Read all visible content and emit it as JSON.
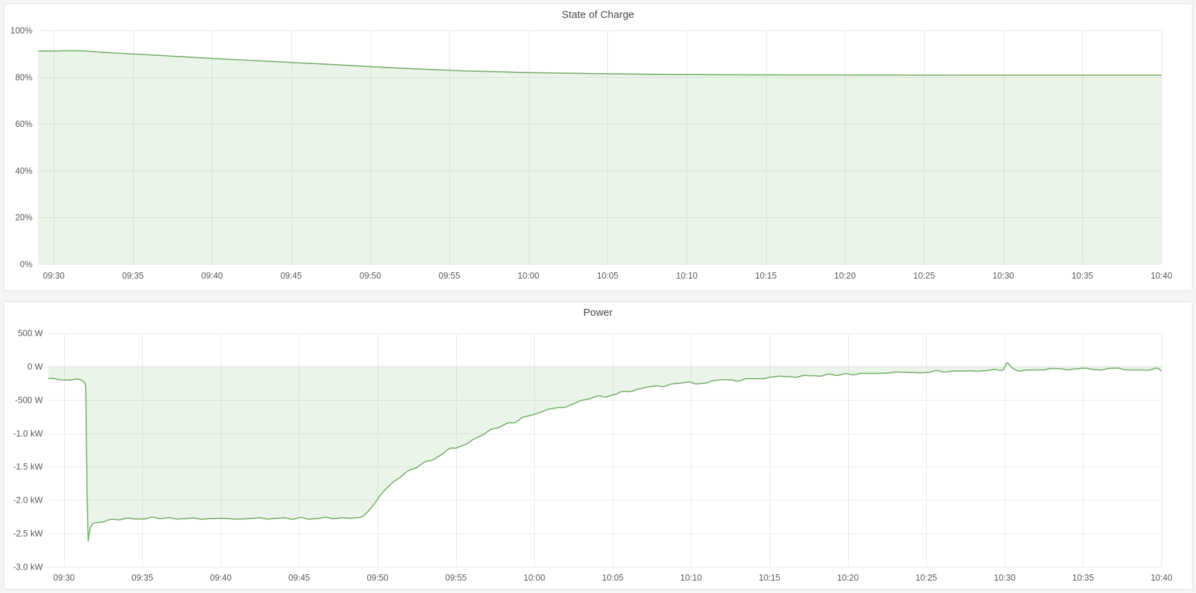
{
  "page": {
    "background_color": "#f4f5f5",
    "panel_background": "#ffffff",
    "panel_border_color": "#e2e5e5",
    "grid_color": "#e8e9e9",
    "tick_text_color": "#55585e",
    "title_text_color": "#44484e"
  },
  "chart_data": [
    {
      "type": "area",
      "title": "State of Charge",
      "unit": "%",
      "legend": "none",
      "grid": true,
      "line_color": "#73ae66",
      "fill_color": "rgba(115,174,102,0.14)",
      "x_type": "time",
      "x_range_minutes": [
        -1,
        70
      ],
      "x_tick_minutes": [
        0,
        5,
        10,
        15,
        20,
        25,
        30,
        35,
        40,
        45,
        50,
        55,
        60,
        65,
        70
      ],
      "x_tick_labels": [
        "09:30",
        "09:35",
        "09:40",
        "09:45",
        "09:50",
        "09:55",
        "10:00",
        "10:05",
        "10:10",
        "10:15",
        "10:20",
        "10:25",
        "10:30",
        "10:35",
        "10:40"
      ],
      "y_domain": [
        0,
        100
      ],
      "y_tick_values": [
        100,
        80,
        60,
        40,
        20,
        0
      ],
      "y_tick_labels": [
        "100%",
        "80%",
        "60%",
        "40%",
        "20%",
        "0%"
      ],
      "zero_baseline": 0,
      "noise_frequency": 0,
      "points": [
        [
          -1,
          91.1,
          0
        ],
        [
          0,
          91.15,
          0
        ],
        [
          0.9,
          91.3,
          0
        ],
        [
          1.6,
          91.25,
          0
        ],
        [
          3,
          90.65,
          0
        ],
        [
          5,
          89.9,
          0
        ],
        [
          7,
          89.15,
          0
        ],
        [
          10,
          88.0,
          0
        ],
        [
          13,
          86.95,
          0
        ],
        [
          15,
          86.25,
          0
        ],
        [
          17,
          85.6,
          0
        ],
        [
          19,
          84.85,
          0
        ],
        [
          20,
          84.5,
          0
        ],
        [
          21,
          84.15,
          0
        ],
        [
          22,
          83.8,
          0
        ],
        [
          23.5,
          83.35,
          0
        ],
        [
          25,
          82.9,
          0
        ],
        [
          26.5,
          82.55,
          0
        ],
        [
          28,
          82.3,
          0
        ],
        [
          30,
          81.95,
          0
        ],
        [
          32,
          81.7,
          0
        ],
        [
          34,
          81.5,
          0
        ],
        [
          36,
          81.35,
          0
        ],
        [
          38,
          81.2,
          0
        ],
        [
          40,
          81.1,
          0
        ],
        [
          42.5,
          81.0,
          0
        ],
        [
          45,
          80.95,
          0
        ],
        [
          50,
          80.9,
          0
        ],
        [
          55,
          80.85,
          0
        ],
        [
          60,
          80.8,
          0
        ],
        [
          65,
          80.8,
          0
        ],
        [
          70,
          80.8,
          0
        ]
      ]
    },
    {
      "type": "area",
      "title": "Power",
      "unit": "W",
      "legend": "none",
      "grid": true,
      "line_color": "#73ae66",
      "fill_color": "rgba(115,174,102,0.14)",
      "x_type": "time",
      "x_range_minutes": [
        -1,
        70
      ],
      "x_tick_minutes": [
        0,
        5,
        10,
        15,
        20,
        25,
        30,
        35,
        40,
        45,
        50,
        55,
        60,
        65,
        70
      ],
      "x_tick_labels": [
        "09:30",
        "09:35",
        "09:40",
        "09:45",
        "09:50",
        "09:55",
        "10:00",
        "10:05",
        "10:10",
        "10:15",
        "10:20",
        "10:25",
        "10:30",
        "10:35",
        "10:40"
      ],
      "y_domain": [
        -3000,
        500
      ],
      "y_tick_values": [
        500,
        0,
        -500,
        -1000,
        -1500,
        -2000,
        -2500,
        -3000
      ],
      "y_tick_labels": [
        "500 W",
        "0 W",
        "-500 W",
        "-1.0 kW",
        "-1.5 kW",
        "-2.0 kW",
        "-2.5 kW",
        "-3.0 kW"
      ],
      "zero_baseline": 0,
      "noise_frequency": 1.9,
      "points": [
        [
          -1,
          -190,
          22
        ],
        [
          0,
          -225,
          28
        ],
        [
          0.9,
          -215,
          28
        ],
        [
          1.3,
          -240,
          10
        ],
        [
          1.38,
          -260,
          0
        ],
        [
          1.52,
          -2620,
          0
        ],
        [
          1.66,
          -2430,
          0
        ],
        [
          1.9,
          -2350,
          8
        ],
        [
          2.3,
          -2330,
          10
        ],
        [
          3,
          -2300,
          12
        ],
        [
          4,
          -2280,
          14
        ],
        [
          6,
          -2270,
          14
        ],
        [
          9,
          -2280,
          14
        ],
        [
          12,
          -2270,
          14
        ],
        [
          15,
          -2275,
          14
        ],
        [
          17,
          -2270,
          14
        ],
        [
          18.8,
          -2265,
          12
        ],
        [
          19.6,
          -2120,
          18
        ],
        [
          20.3,
          -1900,
          20
        ],
        [
          21,
          -1730,
          22
        ],
        [
          22,
          -1560,
          25
        ],
        [
          23,
          -1430,
          28
        ],
        [
          24,
          -1320,
          28
        ],
        [
          25,
          -1210,
          28
        ],
        [
          26,
          -1100,
          30
        ],
        [
          27,
          -990,
          30
        ],
        [
          28,
          -890,
          30
        ],
        [
          29,
          -800,
          28
        ],
        [
          30,
          -725,
          28
        ],
        [
          31,
          -655,
          26
        ],
        [
          32,
          -590,
          26
        ],
        [
          33,
          -530,
          26
        ],
        [
          34,
          -465,
          26
        ],
        [
          35,
          -410,
          25
        ],
        [
          36,
          -370,
          24
        ],
        [
          37,
          -335,
          24
        ],
        [
          38,
          -300,
          22
        ],
        [
          39,
          -275,
          22
        ],
        [
          40,
          -250,
          22
        ],
        [
          41,
          -230,
          20
        ],
        [
          42,
          -215,
          20
        ],
        [
          43,
          -200,
          20
        ],
        [
          44,
          -185,
          18
        ],
        [
          45,
          -170,
          18
        ],
        [
          46,
          -158,
          18
        ],
        [
          47,
          -148,
          18
        ],
        [
          48,
          -138,
          17
        ],
        [
          49,
          -126,
          17
        ],
        [
          50,
          -115,
          17
        ],
        [
          51,
          -105,
          16
        ],
        [
          52,
          -98,
          16
        ],
        [
          53,
          -92,
          16
        ],
        [
          54,
          -85,
          16
        ],
        [
          55,
          -78,
          16
        ],
        [
          56,
          -73,
          16
        ],
        [
          57,
          -70,
          16
        ],
        [
          58,
          -65,
          18
        ],
        [
          59,
          -58,
          18
        ],
        [
          59.9,
          -40,
          15
        ],
        [
          60.15,
          55,
          0
        ],
        [
          60.5,
          -35,
          18
        ],
        [
          61,
          -50,
          20
        ],
        [
          62,
          -48,
          20
        ],
        [
          63,
          -45,
          20
        ],
        [
          64,
          -48,
          18
        ],
        [
          65,
          -45,
          18
        ],
        [
          66,
          -42,
          18
        ],
        [
          67,
          -40,
          18
        ],
        [
          68,
          -45,
          18
        ],
        [
          69,
          -42,
          18
        ],
        [
          69.7,
          -25,
          10
        ],
        [
          70,
          -70,
          0
        ]
      ]
    }
  ]
}
